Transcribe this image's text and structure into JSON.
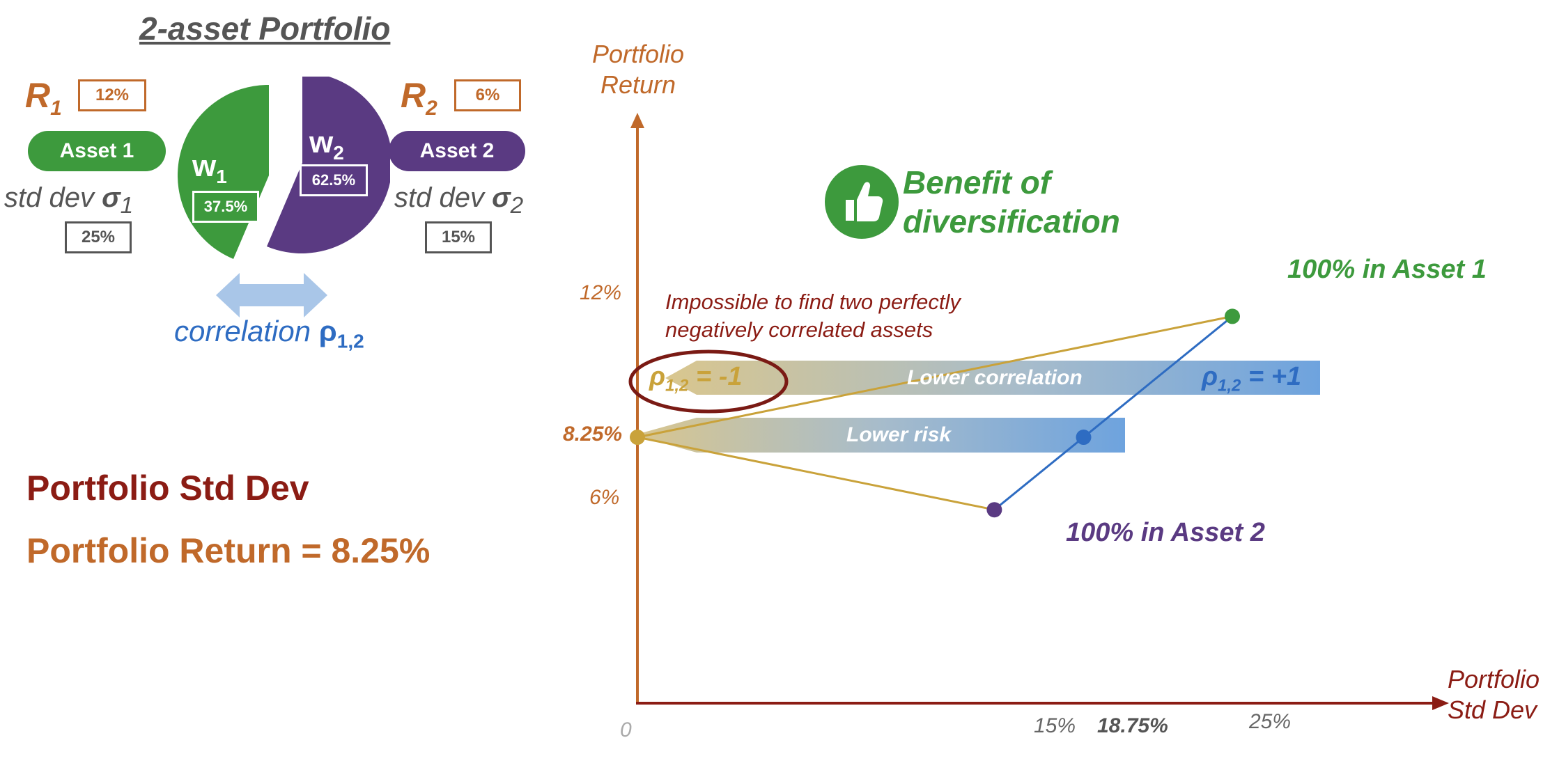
{
  "title": "2-asset Portfolio",
  "asset1": {
    "r_main": "R",
    "r_sub": "1",
    "return": "12%",
    "name": "Asset 1",
    "std_label": "std dev ",
    "sigma": "σ",
    "sigma_sub": "1",
    "std": "25%"
  },
  "asset2": {
    "r_main": "R",
    "r_sub": "2",
    "return": "6%",
    "name": "Asset 2",
    "std_label": "std dev ",
    "sigma": "σ",
    "sigma_sub": "2",
    "std": "15%"
  },
  "weights": {
    "w1": {
      "main": "w",
      "sub": "1",
      "value": "37.5%",
      "fraction": 0.375
    },
    "w2": {
      "main": "w",
      "sub": "2",
      "value": "62.5%",
      "fraction": 0.625
    }
  },
  "correlation": {
    "label": "correlation ",
    "symbol": "ρ",
    "sub": "1,2"
  },
  "portfolio_std_label": "Portfolio Std Dev",
  "portfolio_return_label": "Portfolio Return = 8.25%",
  "benefit_line1": "Benefit of",
  "benefit_line2": "diversification",
  "impossible_line1": "Impossible to find two perfectly",
  "impossible_line2": "negatively correlated assets",
  "lower_correlation": "Lower correlation",
  "lower_risk": "Lower risk",
  "rho_neg": {
    "symbol": "ρ",
    "sub": "1,2",
    "rest": " = -1"
  },
  "rho_pos": {
    "symbol": "ρ",
    "sub": "1,2",
    "rest": " = +1"
  },
  "asset1_point_label": "100% in Asset 1",
  "asset2_point_label": "100% in Asset 2",
  "colors": {
    "orange": "#c0692a",
    "green": "#3d9a3d",
    "purple": "#5a3a82",
    "blue": "#2e6cc2",
    "gold": "#c9a23a",
    "darkred": "#8b1c14"
  },
  "chart_data": {
    "type": "line",
    "ylabel_line1": "Portfolio",
    "ylabel_line2": "Return",
    "xlabel_line1": "Portfolio",
    "xlabel_line2": "Std Dev",
    "origin_label": "0",
    "x_ticks": [
      "15%",
      "18.75%",
      "25%"
    ],
    "y_ticks": [
      "12%",
      "8.25%",
      "6%"
    ],
    "xlim": [
      0,
      31.2
    ],
    "ylim": [
      0,
      14.8
    ],
    "series": [
      {
        "name": "ρ1,2 = +1",
        "color": "#2e6cc2",
        "x": [
          15,
          18.75,
          25
        ],
        "y": [
          6,
          8.25,
          12
        ]
      },
      {
        "name": "ρ1,2 = -1",
        "color": "#c9a23a",
        "x": [
          15,
          0,
          25
        ],
        "y": [
          6,
          8.25,
          12
        ]
      }
    ],
    "points": [
      {
        "label": "100% in Asset 1",
        "x": 25,
        "y": 12,
        "color": "#3d9a3d"
      },
      {
        "label": "100% in Asset 2",
        "x": 15,
        "y": 6,
        "color": "#5a3a82"
      },
      {
        "label": "",
        "x": 18.75,
        "y": 8.25,
        "color": "#2e6cc2"
      },
      {
        "label": "",
        "x": 0,
        "y": 8.25,
        "color": "#c9a23a"
      }
    ]
  }
}
